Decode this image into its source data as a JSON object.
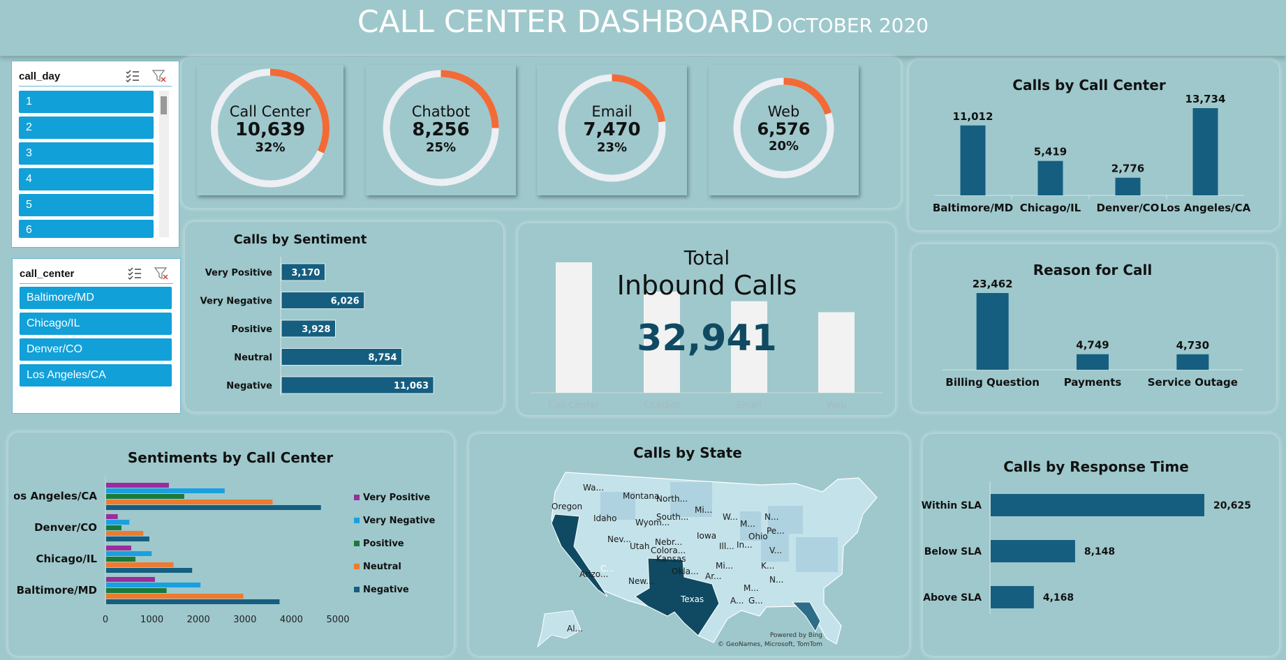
{
  "header": {
    "title": "CALL CENTER DASHBOARD",
    "subtitle": "OCTOBER 2020"
  },
  "slicers": {
    "call_day": {
      "title": "call_day",
      "items": [
        "1",
        "2",
        "3",
        "4",
        "5",
        "6"
      ]
    },
    "call_center": {
      "title": "call_center",
      "items": [
        "Baltimore/MD",
        "Chicago/IL",
        "Denver/CO",
        "Los Angeles/CA"
      ]
    }
  },
  "kpis": [
    {
      "label": "Call Center",
      "value": "10,639",
      "pct": "32%",
      "fraction": 0.32
    },
    {
      "label": "Chatbot",
      "value": "8,256",
      "pct": "25%",
      "fraction": 0.25
    },
    {
      "label": "Email",
      "value": "7,470",
      "pct": "23%",
      "fraction": 0.23
    },
    {
      "label": "Web",
      "value": "6,576",
      "pct": "20%",
      "fraction": 0.2
    }
  ],
  "total": {
    "label1": "Total",
    "label2": "Inbound Calls",
    "value": "32,941"
  },
  "colors": {
    "accent": "#f26a36",
    "ring": "#eceff3",
    "bar": "#155e80",
    "slicer": "#12a0d8",
    "map_dark": "#0f4a62"
  },
  "chart_data": [
    {
      "id": "calls_by_call_center",
      "type": "bar",
      "title": "Calls by Call Center",
      "categories": [
        "Baltimore/MD",
        "Chicago/IL",
        "Denver/CO",
        "Los Angeles/CA"
      ],
      "values": [
        11012,
        5419,
        2776,
        13734
      ],
      "labels": [
        "11,012",
        "5,419",
        "2,776",
        "13,734"
      ]
    },
    {
      "id": "calls_by_sentiment",
      "type": "bar",
      "orientation": "horizontal",
      "title": "Calls by Sentiment",
      "categories": [
        "Very Positive",
        "Very Negative",
        "Positive",
        "Neutral",
        "Negative"
      ],
      "values": [
        3170,
        6026,
        3928,
        8754,
        11063
      ],
      "labels": [
        "3,170",
        "6,026",
        "3,928",
        "8,754",
        "11,063"
      ]
    },
    {
      "id": "inbound_channels",
      "type": "bar",
      "categories": [
        "Call-Center",
        "Chatbot",
        "Email",
        "Web"
      ],
      "values": [
        10639,
        8256,
        7470,
        6576
      ]
    },
    {
      "id": "reason_for_call",
      "type": "bar",
      "title": "Reason for Call",
      "categories": [
        "Billing Question",
        "Payments",
        "Service Outage"
      ],
      "values": [
        23462,
        4749,
        4730
      ],
      "labels": [
        "23,462",
        "4,749",
        "4,730"
      ]
    },
    {
      "id": "sentiments_by_call_center",
      "type": "bar",
      "orientation": "horizontal",
      "title": "Sentiments by Call Center",
      "categories": [
        "Los Angeles/CA",
        "Denver/CO",
        "Chicago/IL",
        "Baltimore/MD"
      ],
      "series": [
        {
          "name": "Very Positive",
          "color": "#9b2c9b",
          "values": [
            1350,
            250,
            540,
            1050
          ]
        },
        {
          "name": "Very Negative",
          "color": "#1aa0e0",
          "values": [
            2550,
            500,
            980,
            2030
          ]
        },
        {
          "name": "Positive",
          "color": "#1a7a3a",
          "values": [
            1680,
            330,
            630,
            1300
          ]
        },
        {
          "name": "Neutral",
          "color": "#ee7a30",
          "values": [
            3580,
            800,
            1450,
            2950
          ]
        },
        {
          "name": "Negative",
          "color": "#155e80",
          "values": [
            4620,
            930,
            1850,
            3730
          ]
        }
      ],
      "xlim": [
        0,
        5000
      ],
      "xticks": [
        "0",
        "1000",
        "2000",
        "3000",
        "4000",
        "5000"
      ]
    },
    {
      "id": "calls_by_response_time",
      "type": "bar",
      "orientation": "horizontal",
      "title": "Calls by Response Time",
      "categories": [
        "Within SLA",
        "Below SLA",
        "Above SLA"
      ],
      "values": [
        20625,
        8148,
        4168
      ],
      "labels": [
        "20,625",
        "8,148",
        "4,168"
      ]
    }
  ],
  "map": {
    "title": "Calls by State",
    "states": [
      "Wa...",
      "Montana",
      "North...",
      "Mi...",
      "Oregon",
      "Idaho",
      "Wyom...",
      "South...",
      "W...",
      "M...",
      "N...",
      "Iowa",
      "Nebr...",
      "Ohio",
      "Pe...",
      "Nev...",
      "Utah",
      "Colora...",
      "Kansas",
      "Ill...",
      "In...",
      "V...",
      "C...",
      "Mi...",
      "K...",
      "Okla...",
      "Ar...",
      "N...",
      "Arizo...",
      "New...",
      "Texas",
      "M...",
      "A...",
      "G...",
      "Al..."
    ],
    "attribution": [
      "Powered by Bing",
      "© GeoNames, Microsoft, TomTom"
    ]
  }
}
